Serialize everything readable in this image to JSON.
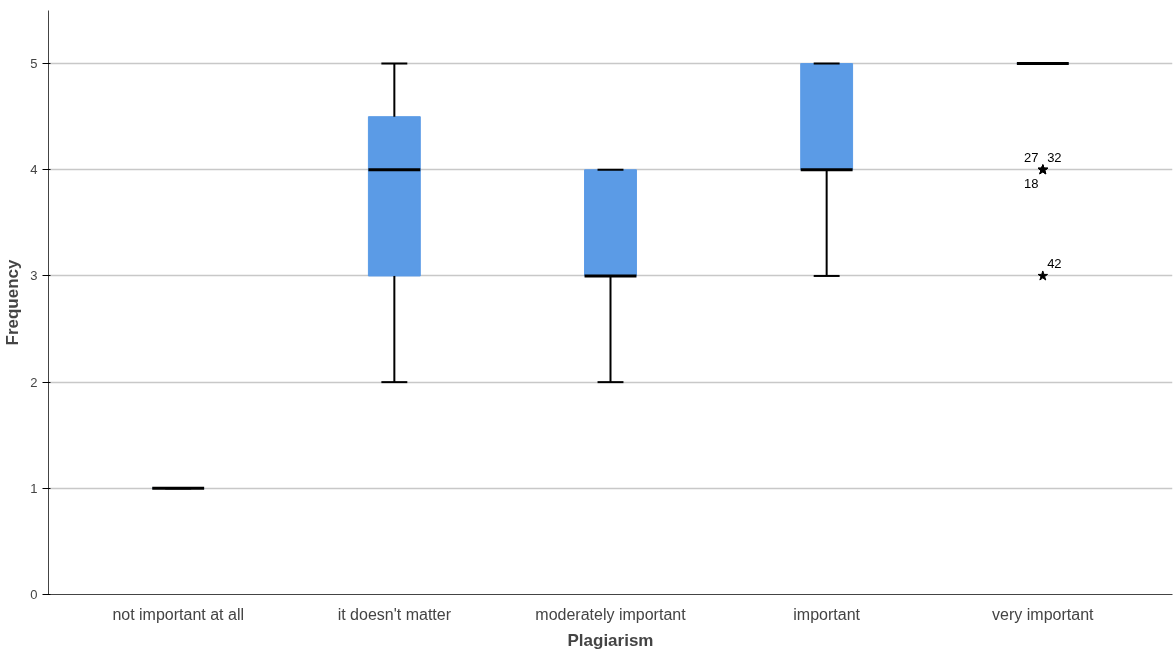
{
  "chart_data": {
    "type": "box",
    "xlabel": "Plagiarism",
    "ylabel": "Frequency",
    "categories": [
      "not important at all",
      "it doesn't matter",
      "moderately important",
      "important",
      "very important"
    ],
    "color": "#5b9be6",
    "boxes": [
      {
        "low": 1,
        "q1": 1,
        "median": 1,
        "q3": 1,
        "high": 1
      },
      {
        "low": 2,
        "q1": 3,
        "median": 4,
        "q3": 4.5,
        "high": 5
      },
      {
        "low": 2,
        "q1": 3,
        "median": 3,
        "q3": 4,
        "high": 4
      },
      {
        "low": 3,
        "q1": 4,
        "median": 4,
        "q3": 5,
        "high": 5
      },
      {
        "low": 5,
        "q1": 5,
        "median": 5,
        "q3": 5,
        "high": 5,
        "outliers": [
          4,
          4,
          4,
          3
        ]
      }
    ],
    "marker": "star",
    "ylim": [
      0,
      5.5
    ],
    "yticks": [
      0,
      1,
      2,
      3,
      4,
      5
    ],
    "grid": "y",
    "annotations": [
      "27",
      "32",
      "18",
      "42"
    ]
  }
}
